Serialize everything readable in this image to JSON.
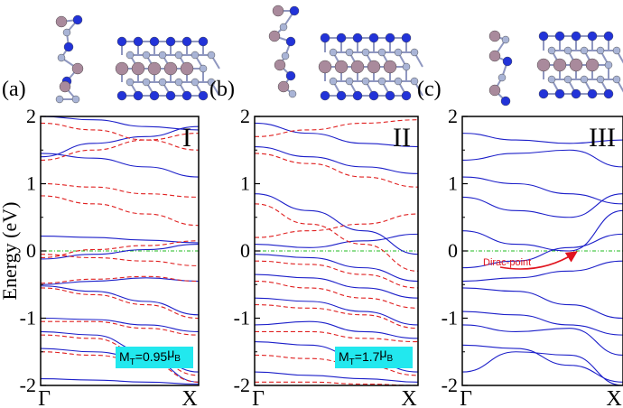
{
  "figure": {
    "ylabel": "Energy (eV)",
    "fermi_level_color": "#22bb22",
    "colors": {
      "spin_up": "#1c1fc9",
      "spin_down": "#e02020",
      "atom_pink": "#a98a9c",
      "atom_blue": "#2233d8",
      "atom_light": "#a9b4d6",
      "badge": "#22e8ee",
      "arrow": "#e0141e"
    }
  },
  "chart_data": [
    {
      "type": "line",
      "panel": "(a)",
      "roman": "I",
      "xticks": [
        "Γ",
        "X"
      ],
      "ylim": [
        -2,
        2
      ],
      "yticks": [
        "2",
        "1",
        "0",
        "-1",
        "-2"
      ],
      "grid": false,
      "annotation": {
        "moment": "M",
        "moment_sub": "T",
        "moment_value": "=0.95",
        "moment_unit": "μ",
        "moment_unit_sub": "B"
      },
      "series": [
        {
          "spin": "up",
          "bands": [
            [
              2.0,
              1.95,
              1.85,
              1.8
            ],
            [
              1.45,
              1.38,
              1.25,
              1.1
            ],
            [
              1.4,
              1.6,
              1.7,
              1.85
            ],
            [
              0.22,
              0.2,
              0.16,
              0.12
            ],
            [
              -0.12,
              -0.05,
              0.02,
              0.1
            ],
            [
              -0.5,
              -0.45,
              -0.4,
              -0.45
            ],
            [
              -0.52,
              -0.6,
              -0.75,
              -0.95
            ],
            [
              -1.0,
              -1.02,
              -1.1,
              -1.2
            ],
            [
              -1.2,
              -1.25,
              -1.5,
              -1.8
            ],
            [
              -1.45,
              -1.5,
              -1.6,
              -1.95
            ],
            [
              -1.9,
              -1.92,
              -1.95,
              -1.98
            ]
          ]
        },
        {
          "spin": "down",
          "bands": [
            [
              1.9,
              1.8,
              1.65,
              1.5
            ],
            [
              1.35,
              1.5,
              1.65,
              1.75
            ],
            [
              1.0,
              0.95,
              0.85,
              0.8
            ],
            [
              0.82,
              0.7,
              0.55,
              0.38
            ],
            [
              -0.05,
              -0.1,
              -0.15,
              -0.22
            ],
            [
              -0.1,
              0.02,
              0.08,
              0.15
            ],
            [
              -0.48,
              -0.42,
              -0.38,
              -0.45
            ],
            [
              -0.55,
              -0.65,
              -0.8,
              -1.0
            ],
            [
              -1.05,
              -1.05,
              -1.15,
              -1.25
            ],
            [
              -1.25,
              -1.3,
              -1.55,
              -1.85
            ],
            [
              -1.5,
              -1.55,
              -1.65,
              -1.95
            ]
          ]
        }
      ]
    },
    {
      "type": "line",
      "panel": "(b)",
      "roman": "II",
      "xticks": [
        "Γ",
        "X"
      ],
      "ylim": [
        -2,
        2
      ],
      "yticks": [
        "2",
        "1",
        "0",
        "-1",
        "-2"
      ],
      "grid": false,
      "annotation": {
        "moment": "M",
        "moment_sub": "T",
        "moment_value": "=1.7",
        "moment_unit": "μ",
        "moment_unit_sub": "B"
      },
      "series": [
        {
          "spin": "up",
          "bands": [
            [
              1.9,
              1.75,
              1.6,
              1.55
            ],
            [
              1.55,
              1.4,
              1.25,
              1.15
            ],
            [
              0.85,
              0.6,
              0.3,
              -0.05
            ],
            [
              0.1,
              0.05,
              0.15,
              0.25
            ],
            [
              -0.05,
              -0.1,
              -0.25,
              -0.45
            ],
            [
              -0.35,
              -0.4,
              -0.55,
              -0.7
            ],
            [
              -0.7,
              -0.75,
              -0.9,
              -1.1
            ],
            [
              -1.1,
              -1.05,
              -1.2,
              -1.3
            ],
            [
              -1.35,
              -1.4,
              -1.6,
              -1.8
            ],
            [
              -1.8,
              -1.85,
              -1.9,
              -1.95
            ]
          ]
        },
        {
          "spin": "down",
          "bands": [
            [
              1.7,
              1.8,
              1.9,
              1.95
            ],
            [
              1.45,
              1.3,
              1.1,
              0.95
            ],
            [
              0.7,
              0.4,
              0.1,
              -0.3
            ],
            [
              0.2,
              0.3,
              0.4,
              0.55
            ],
            [
              -0.15,
              -0.2,
              -0.35,
              -0.55
            ],
            [
              -0.45,
              -0.55,
              -0.7,
              -0.85
            ],
            [
              -0.8,
              -0.85,
              -0.95,
              -1.15
            ],
            [
              -1.2,
              -1.2,
              -1.3,
              -1.35
            ],
            [
              -1.55,
              -1.6,
              -1.7,
              -1.85
            ],
            [
              -1.95,
              -1.95,
              -1.98,
              -2.0
            ]
          ]
        }
      ]
    },
    {
      "type": "line",
      "panel": "(c)",
      "roman": "III",
      "xticks": [
        "Γ",
        "X"
      ],
      "ylim": [
        -2,
        2
      ],
      "yticks": [
        "2",
        "1",
        "0",
        "-1",
        "-2"
      ],
      "grid": false,
      "annotation": {
        "dirac_label": "Dirac-point",
        "dirac_k": 0.72,
        "dirac_energy": 0.0
      },
      "series": [
        {
          "spin": "up",
          "bands": [
            [
              1.75,
              1.65,
              1.6,
              1.65
            ],
            [
              1.35,
              1.45,
              1.5,
              1.25
            ],
            [
              1.1,
              1.0,
              0.85,
              0.7
            ],
            [
              0.8,
              0.6,
              0.5,
              0.85
            ],
            [
              0.3,
              0.1,
              0.0,
              0.6
            ],
            [
              -0.25,
              -0.15,
              0.05,
              0.25
            ],
            [
              -0.45,
              -0.4,
              -0.3,
              -0.15
            ],
            [
              -0.55,
              -0.6,
              -0.8,
              -1.0
            ],
            [
              -0.9,
              -0.95,
              -1.1,
              -1.25
            ],
            [
              -1.1,
              -1.2,
              -1.15,
              -1.55
            ],
            [
              -1.4,
              -1.45,
              -1.7,
              -1.95
            ],
            [
              -1.8,
              -1.5,
              -1.55,
              -2.0
            ]
          ]
        }
      ]
    }
  ]
}
